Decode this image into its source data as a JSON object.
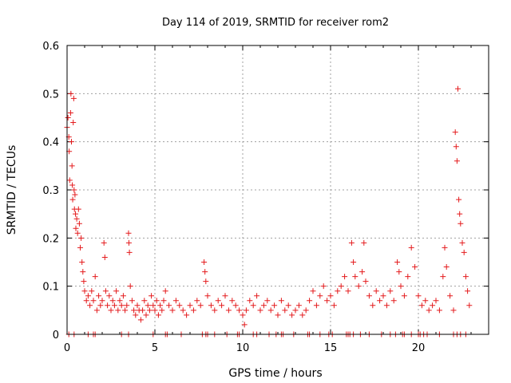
{
  "chart_data": {
    "type": "scatter",
    "title": "Day 114 of 2019, SRMTID for receiver rom2",
    "xlabel": "GPS time / hours",
    "ylabel": "SRMTID / TECUs",
    "xlim": [
      0,
      24
    ],
    "ylim": [
      0,
      0.6
    ],
    "xticks": [
      0,
      5,
      10,
      15,
      20
    ],
    "yticks": [
      0,
      0.1,
      0.2,
      0.3,
      0.4,
      0.5,
      0.6
    ],
    "xtick_labels": [
      "0",
      "5",
      "10",
      "15",
      "20"
    ],
    "ytick_labels": [
      "0",
      "0.1",
      "0.2",
      "0.3",
      "0.4",
      "0.5",
      "0.6"
    ],
    "grid": true,
    "marker": "+",
    "color": "#e41a1c",
    "series": [
      {
        "name": "SRMTID",
        "points": [
          [
            0.0,
            0.43
          ],
          [
            0.05,
            0.45
          ],
          [
            0.1,
            0.41
          ],
          [
            0.12,
            0.38
          ],
          [
            0.15,
            0.32
          ],
          [
            0.2,
            0.46
          ],
          [
            0.22,
            0.5
          ],
          [
            0.25,
            0.4
          ],
          [
            0.28,
            0.35
          ],
          [
            0.3,
            0.31
          ],
          [
            0.32,
            0.28
          ],
          [
            0.35,
            0.44
          ],
          [
            0.38,
            0.49
          ],
          [
            0.4,
            0.3
          ],
          [
            0.42,
            0.26
          ],
          [
            0.45,
            0.29
          ],
          [
            0.48,
            0.25
          ],
          [
            0.5,
            0.22
          ],
          [
            0.55,
            0.24
          ],
          [
            0.6,
            0.21
          ],
          [
            0.65,
            0.26
          ],
          [
            0.7,
            0.23
          ],
          [
            0.75,
            0.18
          ],
          [
            0.8,
            0.2
          ],
          [
            0.85,
            0.15
          ],
          [
            0.9,
            0.13
          ],
          [
            0.95,
            0.11
          ],
          [
            1.0,
            0.09
          ],
          [
            1.1,
            0.07
          ],
          [
            1.2,
            0.08
          ],
          [
            1.3,
            0.06
          ],
          [
            1.4,
            0.09
          ],
          [
            1.5,
            0.07
          ],
          [
            1.6,
            0.12
          ],
          [
            1.7,
            0.05
          ],
          [
            1.8,
            0.08
          ],
          [
            1.9,
            0.06
          ],
          [
            2.0,
            0.07
          ],
          [
            2.1,
            0.19
          ],
          [
            2.15,
            0.16
          ],
          [
            2.2,
            0.09
          ],
          [
            2.3,
            0.06
          ],
          [
            2.4,
            0.08
          ],
          [
            2.5,
            0.05
          ],
          [
            2.6,
            0.07
          ],
          [
            2.7,
            0.06
          ],
          [
            2.8,
            0.09
          ],
          [
            2.9,
            0.05
          ],
          [
            3.0,
            0.07
          ],
          [
            3.1,
            0.06
          ],
          [
            3.2,
            0.08
          ],
          [
            3.3,
            0.05
          ],
          [
            3.4,
            0.06
          ],
          [
            3.5,
            0.21
          ],
          [
            3.52,
            0.19
          ],
          [
            3.55,
            0.17
          ],
          [
            3.6,
            0.1
          ],
          [
            3.7,
            0.07
          ],
          [
            3.8,
            0.05
          ],
          [
            3.9,
            0.04
          ],
          [
            4.0,
            0.06
          ],
          [
            4.1,
            0.05
          ],
          [
            4.2,
            0.03
          ],
          [
            4.3,
            0.05
          ],
          [
            4.4,
            0.07
          ],
          [
            4.5,
            0.04
          ],
          [
            4.6,
            0.06
          ],
          [
            4.7,
            0.05
          ],
          [
            4.8,
            0.08
          ],
          [
            4.9,
            0.06
          ],
          [
            5.0,
            0.05
          ],
          [
            5.1,
            0.07
          ],
          [
            5.2,
            0.04
          ],
          [
            5.3,
            0.06
          ],
          [
            5.4,
            0.05
          ],
          [
            5.5,
            0.07
          ],
          [
            5.6,
            0.09
          ],
          [
            5.8,
            0.06
          ],
          [
            6.0,
            0.05
          ],
          [
            6.2,
            0.07
          ],
          [
            6.4,
            0.06
          ],
          [
            6.6,
            0.05
          ],
          [
            6.8,
            0.04
          ],
          [
            7.0,
            0.06
          ],
          [
            7.2,
            0.05
          ],
          [
            7.4,
            0.07
          ],
          [
            7.6,
            0.06
          ],
          [
            7.8,
            0.15
          ],
          [
            7.85,
            0.13
          ],
          [
            7.9,
            0.11
          ],
          [
            8.0,
            0.08
          ],
          [
            8.2,
            0.06
          ],
          [
            8.4,
            0.05
          ],
          [
            8.6,
            0.07
          ],
          [
            8.8,
            0.06
          ],
          [
            9.0,
            0.08
          ],
          [
            9.2,
            0.05
          ],
          [
            9.4,
            0.07
          ],
          [
            9.6,
            0.06
          ],
          [
            9.8,
            0.05
          ],
          [
            10.0,
            0.04
          ],
          [
            10.1,
            0.02
          ],
          [
            10.2,
            0.05
          ],
          [
            10.4,
            0.07
          ],
          [
            10.6,
            0.06
          ],
          [
            10.8,
            0.08
          ],
          [
            11.0,
            0.05
          ],
          [
            11.2,
            0.06
          ],
          [
            11.4,
            0.07
          ],
          [
            11.6,
            0.05
          ],
          [
            11.8,
            0.06
          ],
          [
            12.0,
            0.04
          ],
          [
            12.2,
            0.07
          ],
          [
            12.4,
            0.05
          ],
          [
            12.6,
            0.06
          ],
          [
            12.8,
            0.04
          ],
          [
            13.0,
            0.05
          ],
          [
            13.2,
            0.06
          ],
          [
            13.4,
            0.04
          ],
          [
            13.6,
            0.05
          ],
          [
            13.8,
            0.07
          ],
          [
            14.0,
            0.09
          ],
          [
            14.2,
            0.06
          ],
          [
            14.4,
            0.08
          ],
          [
            14.6,
            0.1
          ],
          [
            14.8,
            0.07
          ],
          [
            15.0,
            0.08
          ],
          [
            15.2,
            0.06
          ],
          [
            15.4,
            0.09
          ],
          [
            15.6,
            0.1
          ],
          [
            15.8,
            0.12
          ],
          [
            16.0,
            0.09
          ],
          [
            16.2,
            0.19
          ],
          [
            16.3,
            0.15
          ],
          [
            16.4,
            0.12
          ],
          [
            16.6,
            0.1
          ],
          [
            16.8,
            0.13
          ],
          [
            16.9,
            0.19
          ],
          [
            17.0,
            0.11
          ],
          [
            17.2,
            0.08
          ],
          [
            17.4,
            0.06
          ],
          [
            17.6,
            0.09
          ],
          [
            17.8,
            0.07
          ],
          [
            18.0,
            0.08
          ],
          [
            18.2,
            0.06
          ],
          [
            18.4,
            0.09
          ],
          [
            18.6,
            0.07
          ],
          [
            18.8,
            0.15
          ],
          [
            18.9,
            0.13
          ],
          [
            19.0,
            0.1
          ],
          [
            19.2,
            0.08
          ],
          [
            19.4,
            0.12
          ],
          [
            19.6,
            0.18
          ],
          [
            19.8,
            0.14
          ],
          [
            20.0,
            0.08
          ],
          [
            20.2,
            0.06
          ],
          [
            20.4,
            0.07
          ],
          [
            20.6,
            0.05
          ],
          [
            20.8,
            0.06
          ],
          [
            21.0,
            0.07
          ],
          [
            21.2,
            0.05
          ],
          [
            21.4,
            0.12
          ],
          [
            21.5,
            0.18
          ],
          [
            21.6,
            0.14
          ],
          [
            21.8,
            0.08
          ],
          [
            22.0,
            0.05
          ],
          [
            22.1,
            0.42
          ],
          [
            22.15,
            0.39
          ],
          [
            22.2,
            0.36
          ],
          [
            22.25,
            0.51
          ],
          [
            22.3,
            0.28
          ],
          [
            22.35,
            0.25
          ],
          [
            22.4,
            0.23
          ],
          [
            22.5,
            0.19
          ],
          [
            22.6,
            0.17
          ],
          [
            22.7,
            0.12
          ],
          [
            22.8,
            0.09
          ],
          [
            22.9,
            0.06
          ]
        ]
      }
    ],
    "zero_points_x": [
      0.1,
      0.4,
      1.2,
      1.5,
      1.6,
      3.1,
      3.5,
      4.9,
      5.6,
      5.7,
      6.5,
      7.7,
      7.9,
      8.0,
      8.4,
      9.1,
      9.7,
      9.8,
      10.6,
      10.8,
      11.5,
      11.9,
      12.2,
      12.3,
      12.9,
      13.7,
      13.8,
      14.4,
      14.9,
      15.1,
      15.9,
      16.0,
      16.1,
      16.3,
      16.7,
      17.2,
      17.9,
      18.4,
      18.7,
      19.1,
      19.2,
      19.6,
      20.0,
      20.1,
      20.3,
      20.5,
      21.2,
      22.0,
      22.2,
      22.4,
      22.7
    ]
  }
}
